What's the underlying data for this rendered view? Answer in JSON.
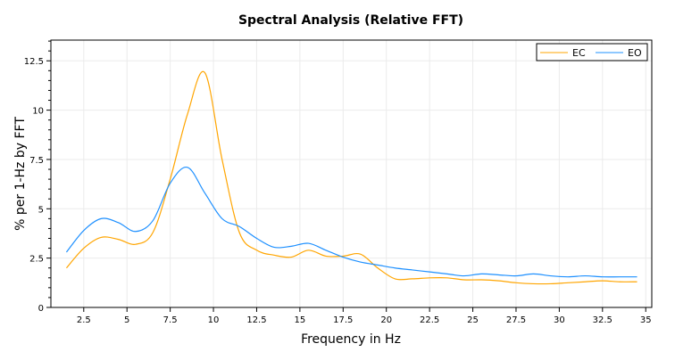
{
  "chart_data": {
    "type": "line",
    "title": "Spectral Analysis (Relative FFT)",
    "xlabel": "Frequency in Hz",
    "ylabel": "% per 1-Hz by FFT",
    "xlim": [
      0.6,
      35.35
    ],
    "ylim": [
      0,
      13.55
    ],
    "xticks": [
      2.5,
      5,
      7.5,
      10,
      12.5,
      15,
      17.5,
      20,
      22.5,
      25,
      27.5,
      30,
      32.5,
      35
    ],
    "xtick_labels": [
      "2.5",
      "5",
      "7.5",
      "10",
      "12.5",
      "15",
      "17.5",
      "20",
      "22.5",
      "25",
      "27.5",
      "30",
      "32.5",
      "35"
    ],
    "yticks": [
      0,
      2.5,
      5,
      7.5,
      10,
      12.5
    ],
    "ytick_labels": [
      "0",
      "2.5",
      "5",
      "7.5",
      "10",
      "12.5"
    ],
    "grid": true,
    "legend": "top-right",
    "x": [
      1.5,
      2.5,
      3.5,
      4.5,
      5.5,
      6.5,
      7.5,
      8.5,
      9.5,
      10.5,
      11.5,
      12.5,
      13.5,
      14.5,
      15.5,
      16.5,
      17.5,
      18.5,
      19.5,
      20.5,
      21.5,
      22.5,
      23.5,
      24.5,
      25.5,
      26.5,
      27.5,
      28.5,
      29.5,
      30.5,
      31.5,
      32.5,
      33.5,
      34.5
    ],
    "series": [
      {
        "name": "EC",
        "color": "#FFA500",
        "values": [
          2.0,
          3.0,
          3.55,
          3.45,
          3.2,
          3.8,
          6.5,
          9.8,
          11.9,
          7.5,
          3.8,
          2.9,
          2.65,
          2.55,
          2.9,
          2.6,
          2.6,
          2.7,
          2.0,
          1.45,
          1.45,
          1.5,
          1.5,
          1.4,
          1.4,
          1.35,
          1.25,
          1.2,
          1.2,
          1.25,
          1.3,
          1.35,
          1.3,
          1.3
        ]
      },
      {
        "name": "EO",
        "color": "#1E90FF",
        "values": [
          2.8,
          3.9,
          4.5,
          4.3,
          3.85,
          4.4,
          6.3,
          7.1,
          5.8,
          4.5,
          4.1,
          3.5,
          3.05,
          3.1,
          3.25,
          2.9,
          2.55,
          2.3,
          2.15,
          2.0,
          1.9,
          1.8,
          1.7,
          1.6,
          1.7,
          1.65,
          1.6,
          1.7,
          1.6,
          1.55,
          1.6,
          1.55,
          1.55,
          1.55
        ]
      }
    ]
  }
}
